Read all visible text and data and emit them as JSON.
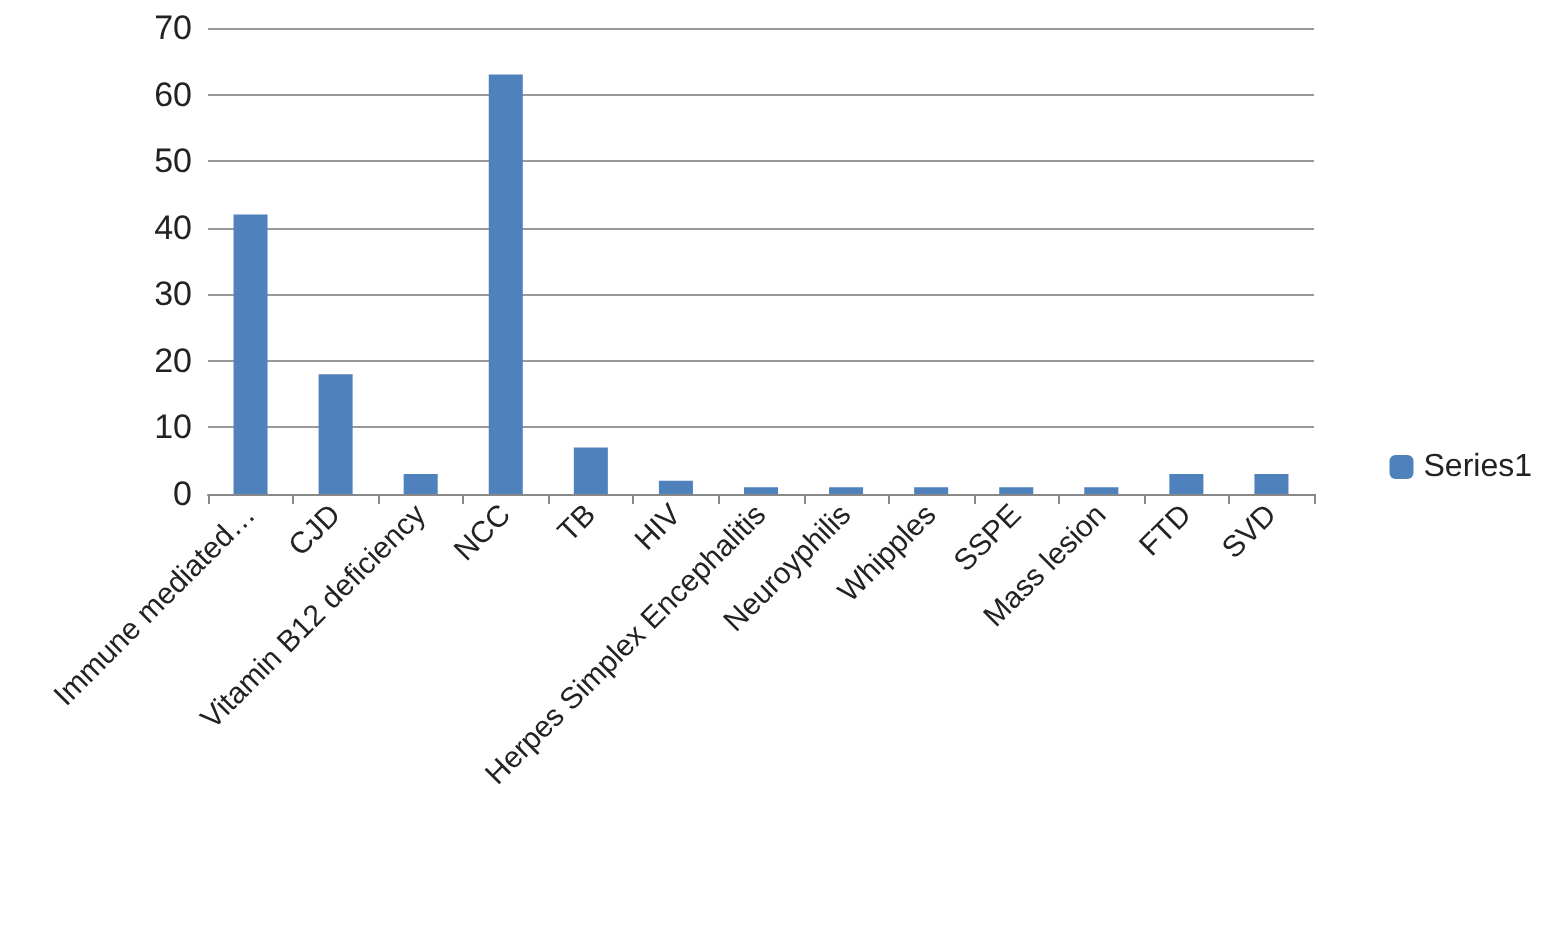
{
  "chart_data": {
    "type": "bar",
    "categories": [
      "Immune mediated…",
      "CJD",
      "Vitamin B12 deficiency",
      "NCC",
      "TB",
      "HIV",
      "Herpes Simplex Encephalitis",
      "Neuroyphilis",
      "Whipples",
      "SSPE",
      "Mass lesion",
      "FTD",
      "SVD"
    ],
    "series": [
      {
        "name": "Series1",
        "color": "#4f81bd",
        "values": [
          42,
          18,
          3,
          63,
          7,
          2,
          1,
          1,
          1,
          1,
          1,
          3,
          3
        ]
      }
    ],
    "ylim": [
      0,
      70
    ],
    "yticks": [
      0,
      10,
      20,
      30,
      40,
      50,
      60,
      70
    ],
    "grid": "y",
    "legend": "right"
  }
}
